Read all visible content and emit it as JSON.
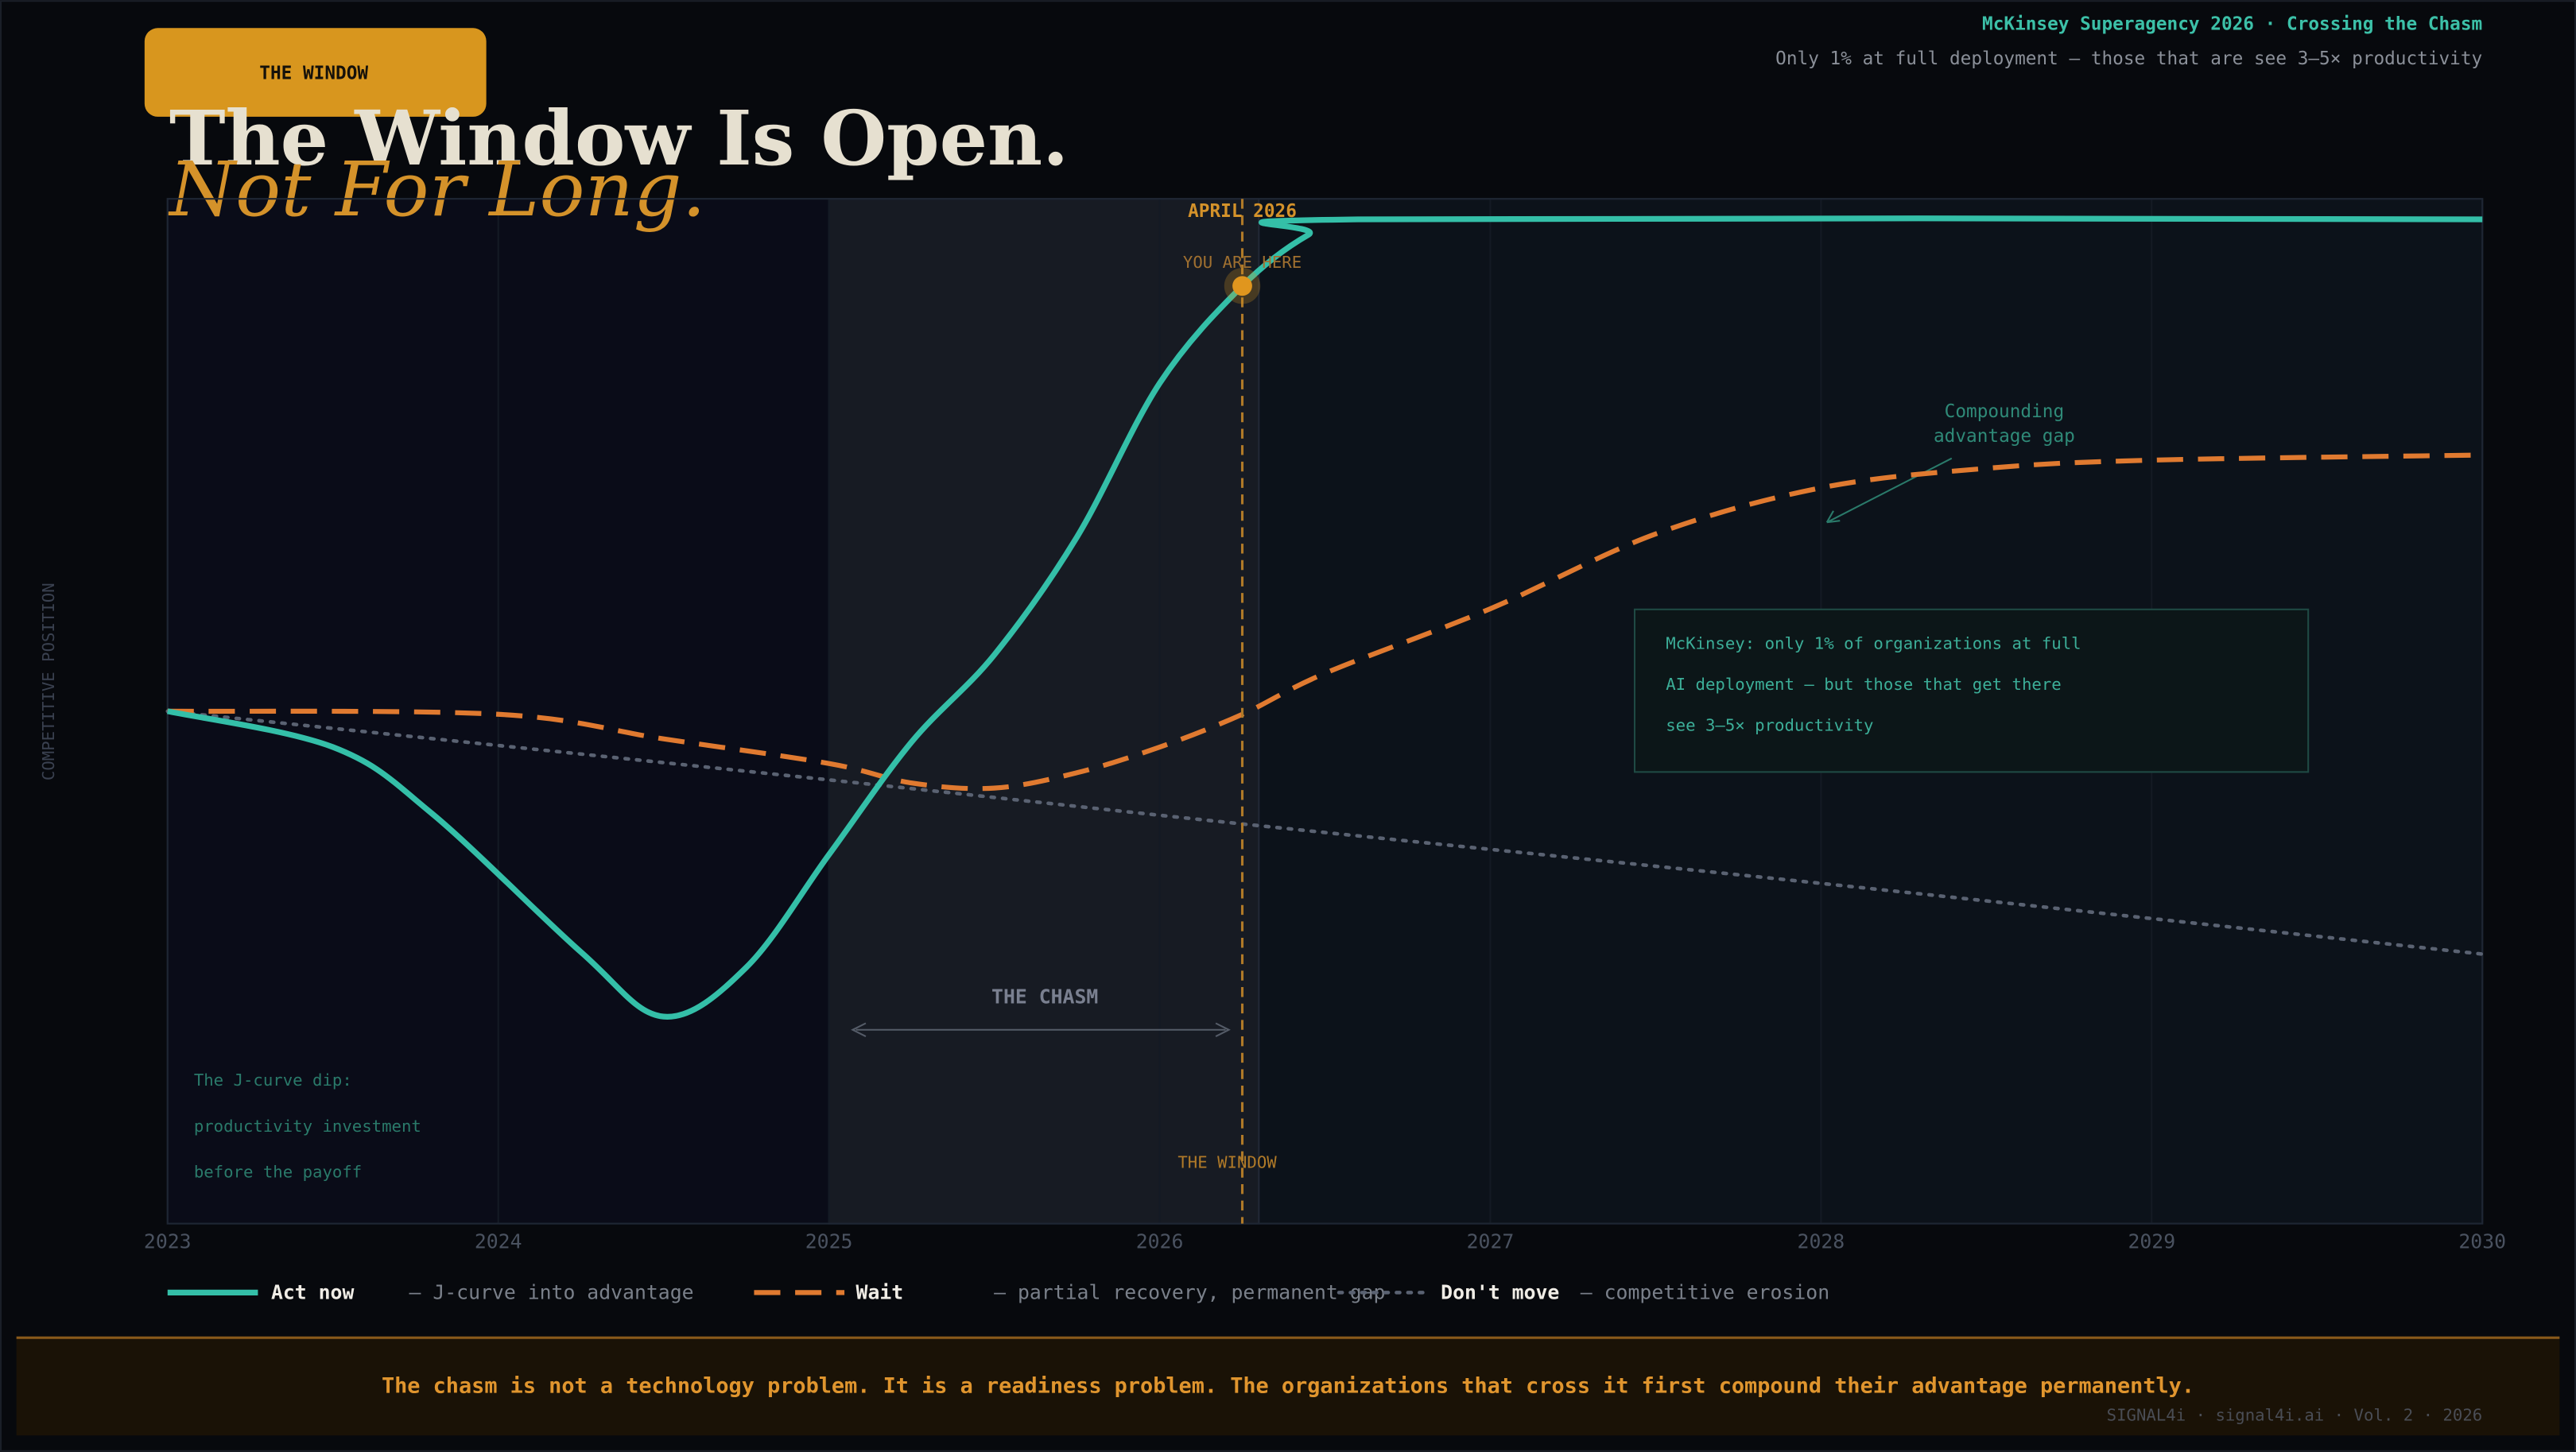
{
  "chart_data": {
    "type": "line",
    "badge": "THE WINDOW",
    "title": "The Window Is Open.",
    "subtitle": "Not For Long.",
    "header": "McKinsey Superagency 2026  ·  Crossing the Chasm",
    "header_note": "Only 1% at full deployment — those that are see 3–5× productivity",
    "y_label": "COMPETITIVE POSITION",
    "xlim": [
      2023,
      2030
    ],
    "xticks": [
      2023,
      2024,
      2025,
      2026,
      2027,
      2028,
      2029,
      2030
    ],
    "ylim": [
      0,
      100
    ],
    "grid": true,
    "shaded_range": [
      2025,
      2026.3
    ],
    "marker_x": 2026.25,
    "annotations": {
      "marker_date": "APRIL 2026",
      "marker_note": "YOU ARE HERE",
      "chasm": "THE CHASM",
      "window": "THE WINDOW",
      "gap": [
        "Compounding",
        "advantage gap"
      ],
      "box": [
        "McKinsey: only 1% of organizations at full",
        "AI deployment — but those that get there",
        "see 3–5× productivity"
      ],
      "dip": [
        "The J-curve dip:",
        "productivity investment",
        "before the payoff"
      ]
    },
    "series": [
      {
        "name": "Act now",
        "description": "— J-curve into advantage",
        "color": "#34bfa8",
        "style": "solid",
        "x": [
          2023,
          2023.5,
          2023.8,
          2024.25,
          2024.5,
          2024.75,
          2025,
          2025.25,
          2025.5,
          2025.75,
          2026,
          2026.25,
          2026.45,
          2026.6,
          2030
        ],
        "values": [
          50,
          46.5,
          40,
          26.5,
          20.2,
          25,
          36,
          47,
          55.5,
          67,
          82,
          91.5,
          96.5,
          98,
          98
        ]
      },
      {
        "name": "Wait",
        "description": "— partial recovery, permanent gap",
        "color": "#e07a30",
        "style": "dashed",
        "x": [
          2023,
          2024,
          2024.5,
          2025,
          2025.25,
          2025.5,
          2025.75,
          2026,
          2026.25,
          2026.5,
          2027,
          2027.5,
          2028,
          2028.5,
          2029,
          2030
        ],
        "values": [
          50,
          49.7,
          47.3,
          44.9,
          43,
          42.5,
          44,
          46.5,
          49.7,
          53.7,
          60,
          67.3,
          71.8,
          73.7,
          74.5,
          75
        ]
      },
      {
        "name": "Don't move",
        "description": "— competitive erosion",
        "color": "#5a6272",
        "style": "dotted",
        "x": [
          2023,
          2025,
          2026.25,
          2028,
          2030
        ],
        "values": [
          50,
          43.3,
          39,
          33.2,
          26.3
        ]
      }
    ],
    "footer": "The chasm is not a technology problem. It is a readiness problem. The organizations that cross it first compound their advantage permanently.",
    "credit": "SIGNAL4i · signal4i.ai · Vol. 2 · 2026"
  }
}
